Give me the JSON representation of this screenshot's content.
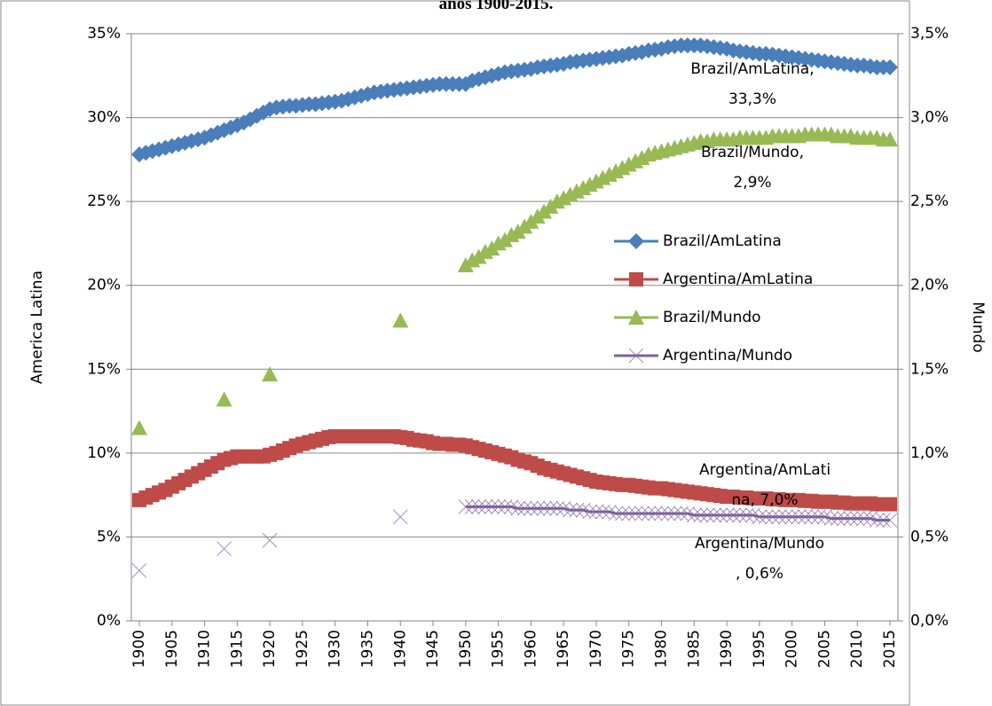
{
  "chart_data": {
    "type": "line",
    "title": "anos 1900-2015.",
    "y_label": "America Latina",
    "y2_label": "Mundo",
    "x": [
      1900,
      1901,
      1902,
      1903,
      1904,
      1905,
      1906,
      1907,
      1908,
      1909,
      1910,
      1911,
      1912,
      1913,
      1914,
      1915,
      1916,
      1917,
      1918,
      1919,
      1920,
      1921,
      1922,
      1923,
      1924,
      1925,
      1926,
      1927,
      1928,
      1929,
      1930,
      1931,
      1932,
      1933,
      1934,
      1935,
      1936,
      1937,
      1938,
      1939,
      1940,
      1941,
      1942,
      1943,
      1944,
      1945,
      1946,
      1947,
      1948,
      1949,
      1950,
      1951,
      1952,
      1953,
      1954,
      1955,
      1956,
      1957,
      1958,
      1959,
      1960,
      1961,
      1962,
      1963,
      1964,
      1965,
      1966,
      1967,
      1968,
      1969,
      1970,
      1971,
      1972,
      1973,
      1974,
      1975,
      1976,
      1977,
      1978,
      1979,
      1980,
      1981,
      1982,
      1983,
      1984,
      1985,
      1986,
      1987,
      1988,
      1989,
      1990,
      1991,
      1992,
      1993,
      1994,
      1995,
      1996,
      1997,
      1998,
      1999,
      2000,
      2001,
      2002,
      2003,
      2004,
      2005,
      2006,
      2007,
      2008,
      2009,
      2010,
      2011,
      2012,
      2013,
      2014,
      2015
    ],
    "xlim": [
      1900,
      2015
    ],
    "xticks": [
      1900,
      1905,
      1910,
      1915,
      1920,
      1925,
      1930,
      1935,
      1940,
      1945,
      1950,
      1955,
      1960,
      1965,
      1970,
      1975,
      1980,
      1985,
      1990,
      1995,
      2000,
      2005,
      2010,
      2015
    ],
    "ylim": [
      0,
      35
    ],
    "yticks": [
      {
        "value": 0,
        "label": "0%"
      },
      {
        "value": 5,
        "label": "5%"
      },
      {
        "value": 10,
        "label": "10%"
      },
      {
        "value": 15,
        "label": "15%"
      },
      {
        "value": 20,
        "label": "20%"
      },
      {
        "value": 25,
        "label": "25%"
      },
      {
        "value": 30,
        "label": "30%"
      },
      {
        "value": 35,
        "label": "35%"
      }
    ],
    "y2lim": [
      0,
      3.5
    ],
    "y2ticks": [
      {
        "value": 0,
        "label": "0,0%"
      },
      {
        "value": 0.5,
        "label": "0,5%"
      },
      {
        "value": 1,
        "label": "1,0%"
      },
      {
        "value": 1.5,
        "label": "1,5%"
      },
      {
        "value": 2,
        "label": "2,0%"
      },
      {
        "value": 2.5,
        "label": "2,5%"
      },
      {
        "value": 3,
        "label": "3,0%"
      },
      {
        "value": 3.5,
        "label": "3,5%"
      }
    ],
    "grid": true,
    "legend": "right",
    "series": [
      {
        "name": "Brazil/AmLatina",
        "color": "#4a7ebb",
        "marker": "diamond",
        "values": [
          27.8,
          27.9,
          28.0,
          28.1,
          28.2,
          28.3,
          28.4,
          28.5,
          28.6,
          28.7,
          28.8,
          28.95,
          29.1,
          29.25,
          29.4,
          29.55,
          29.7,
          29.9,
          30.1,
          30.3,
          30.5,
          30.6,
          30.65,
          30.7,
          30.7,
          30.75,
          30.8,
          30.8,
          30.85,
          30.9,
          30.95,
          31.0,
          31.1,
          31.2,
          31.3,
          31.4,
          31.5,
          31.55,
          31.6,
          31.65,
          31.7,
          31.75,
          31.8,
          31.85,
          31.9,
          31.95,
          32.0,
          32.0,
          32.0,
          32.0,
          32.0,
          32.2,
          32.3,
          32.4,
          32.5,
          32.6,
          32.7,
          32.75,
          32.8,
          32.85,
          32.9,
          33.0,
          33.05,
          33.1,
          33.15,
          33.2,
          33.3,
          33.35,
          33.4,
          33.45,
          33.5,
          33.55,
          33.6,
          33.65,
          33.7,
          33.8,
          33.85,
          33.9,
          34.0,
          34.05,
          34.1,
          34.2,
          34.25,
          34.3,
          34.3,
          34.3,
          34.3,
          34.25,
          34.2,
          34.15,
          34.1,
          34.0,
          33.95,
          33.9,
          33.85,
          33.8,
          33.8,
          33.75,
          33.7,
          33.65,
          33.6,
          33.55,
          33.5,
          33.45,
          33.4,
          33.35,
          33.3,
          33.25,
          33.2,
          33.15,
          33.1,
          33.1,
          33.05,
          33.0,
          33.0,
          33.0
        ]
      },
      {
        "name": "Argentina/AmLatina",
        "color": "#be4b48",
        "marker": "square",
        "values": [
          7.2,
          7.35,
          7.5,
          7.65,
          7.8,
          8.0,
          8.2,
          8.4,
          8.6,
          8.8,
          9.0,
          9.2,
          9.4,
          9.6,
          9.7,
          9.8,
          9.8,
          9.8,
          9.8,
          9.8,
          9.9,
          10.0,
          10.15,
          10.3,
          10.45,
          10.55,
          10.65,
          10.75,
          10.85,
          10.95,
          11.0,
          11.0,
          11.0,
          11.0,
          11.0,
          11.0,
          11.0,
          11.0,
          11.0,
          11.0,
          10.95,
          10.9,
          10.8,
          10.75,
          10.7,
          10.6,
          10.55,
          10.55,
          10.5,
          10.5,
          10.45,
          10.35,
          10.25,
          10.15,
          10.05,
          9.95,
          9.85,
          9.75,
          9.6,
          9.5,
          9.4,
          9.25,
          9.1,
          9.0,
          8.9,
          8.8,
          8.7,
          8.6,
          8.5,
          8.4,
          8.3,
          8.25,
          8.2,
          8.15,
          8.1,
          8.1,
          8.05,
          8.0,
          7.95,
          7.9,
          7.9,
          7.85,
          7.8,
          7.75,
          7.7,
          7.65,
          7.6,
          7.55,
          7.5,
          7.45,
          7.4,
          7.4,
          7.35,
          7.35,
          7.3,
          7.3,
          7.3,
          7.25,
          7.25,
          7.2,
          7.2,
          7.2,
          7.15,
          7.15,
          7.1,
          7.1,
          7.1,
          7.05,
          7.05,
          7.0,
          7.0,
          7.0,
          7.0,
          6.95,
          6.95,
          6.95
        ]
      },
      {
        "name": "Brazil/Mundo",
        "color": "#98b954",
        "marker": "triangle",
        "axis": "y2",
        "values": [
          1.15,
          null,
          null,
          null,
          null,
          null,
          null,
          null,
          null,
          null,
          null,
          null,
          null,
          1.32,
          null,
          null,
          null,
          null,
          null,
          null,
          1.47,
          null,
          null,
          null,
          null,
          null,
          null,
          null,
          null,
          null,
          null,
          null,
          null,
          null,
          null,
          null,
          null,
          null,
          null,
          null,
          1.79,
          null,
          null,
          null,
          null,
          null,
          null,
          null,
          null,
          null,
          2.12,
          2.15,
          2.17,
          2.2,
          2.22,
          2.25,
          2.27,
          2.3,
          2.32,
          2.35,
          2.38,
          2.41,
          2.44,
          2.47,
          2.5,
          2.52,
          2.54,
          2.56,
          2.58,
          2.6,
          2.62,
          2.64,
          2.66,
          2.68,
          2.7,
          2.72,
          2.74,
          2.76,
          2.78,
          2.79,
          2.8,
          2.81,
          2.82,
          2.83,
          2.84,
          2.85,
          2.86,
          2.86,
          2.87,
          2.87,
          2.87,
          2.87,
          2.88,
          2.88,
          2.88,
          2.88,
          2.88,
          2.89,
          2.89,
          2.89,
          2.89,
          2.89,
          2.9,
          2.9,
          2.9,
          2.9,
          2.9,
          2.89,
          2.89,
          2.89,
          2.88,
          2.88,
          2.88,
          2.88,
          2.87,
          2.87
        ]
      },
      {
        "name": "Argentina/Mundo",
        "color": "#7d60a0",
        "marker": "x",
        "axis": "y2",
        "values": [
          0.3,
          null,
          null,
          null,
          null,
          null,
          null,
          null,
          null,
          null,
          null,
          null,
          null,
          0.43,
          null,
          null,
          null,
          null,
          null,
          null,
          0.48,
          null,
          null,
          null,
          null,
          null,
          null,
          null,
          null,
          null,
          null,
          null,
          null,
          null,
          null,
          null,
          null,
          null,
          null,
          null,
          0.62,
          null,
          null,
          null,
          null,
          null,
          null,
          null,
          null,
          null,
          0.68,
          0.68,
          0.68,
          0.68,
          0.68,
          0.68,
          0.68,
          0.68,
          0.67,
          0.67,
          0.67,
          0.67,
          0.67,
          0.67,
          0.67,
          0.67,
          0.66,
          0.66,
          0.66,
          0.65,
          0.65,
          0.65,
          0.65,
          0.64,
          0.64,
          0.64,
          0.64,
          0.64,
          0.64,
          0.64,
          0.64,
          0.64,
          0.64,
          0.64,
          0.64,
          0.63,
          0.63,
          0.63,
          0.63,
          0.63,
          0.63,
          0.63,
          0.63,
          0.63,
          0.63,
          0.62,
          0.62,
          0.62,
          0.62,
          0.62,
          0.62,
          0.62,
          0.62,
          0.62,
          0.62,
          0.62,
          0.61,
          0.61,
          0.61,
          0.61,
          0.61,
          0.61,
          0.61,
          0.6,
          0.6,
          0.6
        ]
      }
    ],
    "annotations": [
      {
        "lines": [
          "Brazil/AmLatina,",
          "33,3%"
        ]
      },
      {
        "lines": [
          "Brazil/Mundo,",
          "2,9%"
        ]
      },
      {
        "lines": [
          "Argentina/AmLati",
          "na, 7,0%"
        ]
      },
      {
        "lines": [
          "Argentina/Mundo",
          ", 0,6%"
        ]
      }
    ]
  }
}
